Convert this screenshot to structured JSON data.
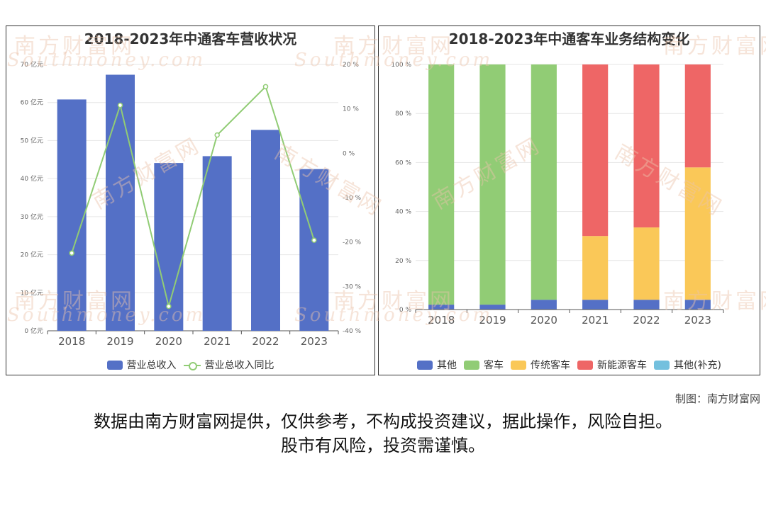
{
  "left_chart": {
    "title": "2018-2023年中通客车营收状况",
    "legend": {
      "bar": "营业总收入",
      "line": "营业总收入同比"
    },
    "colors": {
      "bar": "#5470c6",
      "line": "#91cc75"
    }
  },
  "right_chart": {
    "title": "2018-2023年中通客车业务结构变化",
    "legend": [
      "其他",
      "客车",
      "传统客车",
      "新能源客车",
      "其他(补充)"
    ],
    "colors": [
      "#5470c6",
      "#91cc75",
      "#fac858",
      "#ee6666",
      "#73c0de"
    ]
  },
  "watermark": {
    "main": "南方财富网",
    "sub": "Southmoney.com"
  },
  "credit": "制图：南方财富网",
  "disclaimer": {
    "line1": "数据由南方财富网提供，仅供参考，不构成投资建议，据此操作，风险自担。",
    "line2": "股市有风险，投资需谨慎。"
  },
  "chart_data": [
    {
      "type": "bar",
      "title": "2018-2023年中通客车营收状况",
      "categories": [
        "2018",
        "2019",
        "2020",
        "2021",
        "2022",
        "2023"
      ],
      "series": [
        {
          "name": "营业总收入",
          "type": "bar",
          "axis": "left",
          "values": [
            60.8,
            67.3,
            44.1,
            45.9,
            52.8,
            42.5
          ]
        },
        {
          "name": "营业总收入同比",
          "type": "line",
          "axis": "right",
          "values": [
            -22.5,
            10.8,
            -34.5,
            4.1,
            15.0,
            -19.6
          ]
        }
      ],
      "y_left": {
        "ylim": [
          0,
          70
        ],
        "ticks": [
          0,
          10,
          20,
          30,
          40,
          50,
          60,
          70
        ],
        "unit": "亿元"
      },
      "y_right": {
        "ylim": [
          -40,
          20
        ],
        "ticks": [
          -40,
          -30,
          -20,
          -10,
          0,
          10,
          20
        ],
        "unit": "%"
      },
      "grid": true,
      "legend_position": "bottom"
    },
    {
      "type": "bar",
      "stacked": true,
      "title": "2018-2023年中通客车业务结构变化",
      "categories": [
        "2018",
        "2019",
        "2020",
        "2021",
        "2022",
        "2023"
      ],
      "series": [
        {
          "name": "其他",
          "values": [
            2.0,
            2.0,
            4.0,
            4.0,
            4.0,
            4.0
          ]
        },
        {
          "name": "客车",
          "values": [
            98.0,
            98.0,
            96.0,
            0,
            0,
            0
          ]
        },
        {
          "name": "传统客车",
          "values": [
            0,
            0,
            0,
            26.0,
            29.5,
            54.0
          ]
        },
        {
          "name": "新能源客车",
          "values": [
            0,
            0,
            0,
            70.0,
            66.5,
            42.0
          ]
        },
        {
          "name": "其他(补充)",
          "values": [
            0,
            0,
            0,
            0,
            0,
            0
          ]
        }
      ],
      "y": {
        "ylim": [
          0,
          100
        ],
        "ticks": [
          0,
          20,
          40,
          60,
          80,
          100
        ],
        "unit": "%"
      },
      "grid": true,
      "legend_position": "bottom"
    }
  ]
}
